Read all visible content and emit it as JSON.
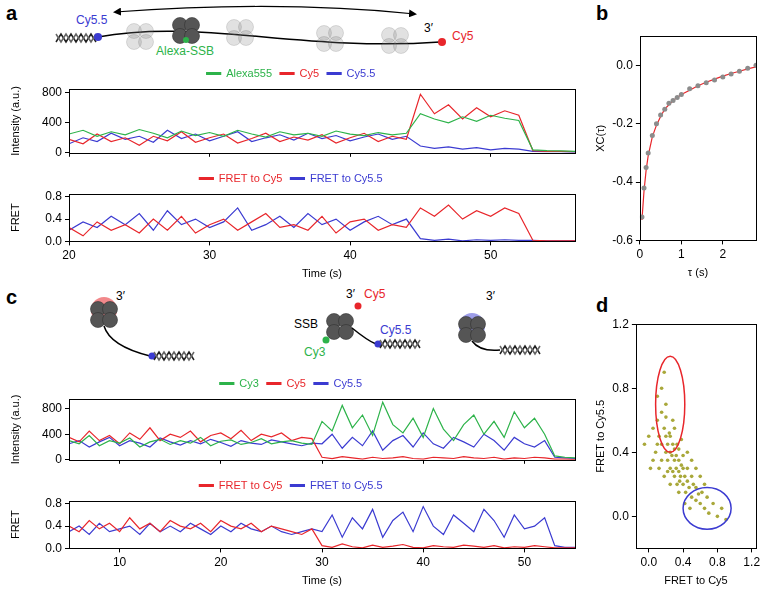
{
  "chart_data": [
    {
      "panel": "a",
      "type": "line",
      "annotations": [
        "Cy5.5",
        "Alexa-SSB",
        "3′",
        "Cy5"
      ],
      "y_label": "Intensity (a.u.)",
      "x": [
        20,
        21,
        22,
        23,
        24,
        25,
        26,
        27,
        28,
        29,
        30,
        31,
        32,
        33,
        34,
        35,
        36,
        37,
        38,
        39,
        40,
        41,
        42,
        43,
        44,
        45,
        46,
        47,
        48,
        49,
        50,
        51,
        52,
        53,
        54,
        55,
        56
      ],
      "xlim": [
        20,
        56
      ],
      "xticks": [
        20,
        30,
        40,
        50
      ],
      "ylim": [
        0,
        850
      ],
      "yticks": [
        0,
        400,
        800
      ],
      "tick_labels": "y",
      "legend": "top",
      "grid": false,
      "series": [
        {
          "name": "Alexa555",
          "color": "#2db34a",
          "values": [
            250,
            300,
            220,
            280,
            240,
            310,
            260,
            200,
            290,
            230,
            270,
            220,
            300,
            250,
            210,
            280,
            240,
            260,
            220,
            290,
            250,
            230,
            270,
            240,
            260,
            520,
            450,
            400,
            480,
            420,
            500,
            460,
            430,
            40,
            30,
            25,
            20
          ]
        },
        {
          "name": "Cy5",
          "color": "#e8262b",
          "values": [
            180,
            120,
            250,
            150,
            200,
            100,
            220,
            160,
            280,
            140,
            200,
            250,
            130,
            190,
            260,
            150,
            210,
            170,
            240,
            130,
            200,
            260,
            150,
            220,
            180,
            780,
            520,
            640,
            450,
            600,
            480,
            560,
            500,
            30,
            20,
            20,
            15
          ]
        },
        {
          "name": "Cy5.5",
          "color": "#3b3bd1",
          "values": [
            120,
            200,
            150,
            260,
            180,
            220,
            140,
            300,
            190,
            250,
            160,
            220,
            280,
            150,
            200,
            240,
            170,
            260,
            190,
            230,
            160,
            210,
            250,
            180,
            220,
            90,
            60,
            80,
            50,
            70,
            40,
            60,
            50,
            20,
            15,
            15,
            10
          ]
        }
      ]
    },
    {
      "panel": "a",
      "type": "line",
      "x_label": "Time (s)",
      "y_label": "FRET",
      "x": [
        20,
        21,
        22,
        23,
        24,
        25,
        26,
        27,
        28,
        29,
        30,
        31,
        32,
        33,
        34,
        35,
        36,
        37,
        38,
        39,
        40,
        41,
        42,
        43,
        44,
        45,
        46,
        47,
        48,
        49,
        50,
        51,
        52,
        53,
        54,
        55,
        56
      ],
      "xlim": [
        20,
        56
      ],
      "xticks": [
        20,
        30,
        40,
        50
      ],
      "ylim": [
        0,
        0.85
      ],
      "yticks": [
        {
          "value": 0,
          "label": "0.0"
        },
        {
          "value": 0.4,
          "label": "0.4"
        },
        {
          "value": 0.8,
          "label": "0.8"
        }
      ],
      "legend": "top",
      "grid": false,
      "series": [
        {
          "name": "FRET to Cy5",
          "color": "#e8262b",
          "values": [
            0.25,
            0.1,
            0.35,
            0.2,
            0.3,
            0.15,
            0.4,
            0.2,
            0.45,
            0.15,
            0.3,
            0.4,
            0.2,
            0.35,
            0.5,
            0.25,
            0.3,
            0.2,
            0.45,
            0.15,
            0.35,
            0.4,
            0.2,
            0.3,
            0.25,
            0.6,
            0.45,
            0.65,
            0.4,
            0.55,
            0.45,
            0.6,
            0.5,
            0.02,
            0.01,
            0.01,
            0.01
          ]
        },
        {
          "name": "FRET to Cy5.5",
          "color": "#3b3bd1",
          "values": [
            0.2,
            0.35,
            0.25,
            0.45,
            0.3,
            0.5,
            0.2,
            0.55,
            0.3,
            0.4,
            0.25,
            0.35,
            0.6,
            0.2,
            0.3,
            0.45,
            0.25,
            0.5,
            0.3,
            0.4,
            0.2,
            0.35,
            0.45,
            0.3,
            0.4,
            0.05,
            0.02,
            0.04,
            0.01,
            0.03,
            0.02,
            0.03,
            0.02,
            0.02,
            0.01,
            0.01,
            0.01
          ]
        }
      ]
    },
    {
      "panel": "b",
      "type": "line",
      "x_label": "τ (s)",
      "y_label": "XC(τ)",
      "x": [
        0.05,
        0.1,
        0.15,
        0.2,
        0.3,
        0.4,
        0.5,
        0.6,
        0.7,
        0.8,
        0.9,
        1.0,
        1.2,
        1.4,
        1.6,
        1.8,
        2.0,
        2.2,
        2.4,
        2.6,
        2.8
      ],
      "xlim": [
        0,
        2.8
      ],
      "xticks": [
        0,
        1,
        2
      ],
      "ylim": [
        -0.6,
        0.1
      ],
      "yticks": [
        {
          "value": -0.6,
          "label": "-0.6"
        },
        {
          "value": -0.4,
          "label": "-0.4"
        },
        {
          "value": -0.2,
          "label": "-0.2"
        },
        {
          "value": 0,
          "label": "0.0"
        }
      ],
      "grid": false,
      "series": [
        {
          "color": "#8c8c8c",
          "marker": "circle",
          "line_style": "none",
          "values": [
            -0.52,
            -0.42,
            -0.35,
            -0.3,
            -0.24,
            -0.2,
            -0.17,
            -0.15,
            -0.13,
            -0.12,
            -0.11,
            -0.1,
            -0.08,
            -0.07,
            -0.06,
            -0.05,
            -0.04,
            -0.03,
            -0.02,
            -0.01,
            0.0
          ]
        },
        {
          "color": "#e8262b",
          "values": [
            -0.53,
            -0.43,
            -0.36,
            -0.31,
            -0.245,
            -0.205,
            -0.175,
            -0.15,
            -0.135,
            -0.12,
            -0.11,
            -0.1,
            -0.085,
            -0.07,
            -0.058,
            -0.047,
            -0.037,
            -0.028,
            -0.02,
            -0.012,
            -0.005
          ]
        }
      ]
    },
    {
      "panel": "c",
      "type": "line",
      "annotations": [
        "3′",
        "3′",
        "Cy5",
        "SSB",
        "Cy5.5",
        "Cy3",
        "3′"
      ],
      "y_label": "Intensity (a.u.)",
      "x": [
        5,
        6,
        7,
        8,
        9,
        10,
        11,
        12,
        13,
        14,
        15,
        16,
        17,
        18,
        19,
        20,
        21,
        22,
        23,
        24,
        25,
        26,
        27,
        28,
        29,
        30,
        31,
        32,
        33,
        34,
        35,
        36,
        37,
        38,
        39,
        40,
        41,
        42,
        43,
        44,
        45,
        46,
        47,
        48,
        49,
        50,
        51,
        52,
        53,
        54,
        55
      ],
      "xlim": [
        5,
        55
      ],
      "xticks": [
        10,
        20,
        30,
        40,
        50
      ],
      "ylim": [
        0,
        950
      ],
      "yticks": [
        0,
        400,
        800
      ],
      "tick_labels": "y",
      "legend": "top",
      "grid": false,
      "series": [
        {
          "name": "Cy3",
          "color": "#2db34a",
          "values": [
            300,
            250,
            380,
            220,
            300,
            260,
            340,
            200,
            280,
            320,
            240,
            300,
            260,
            350,
            220,
            290,
            310,
            240,
            270,
            330,
            250,
            280,
            300,
            260,
            240,
            600,
            450,
            850,
            500,
            700,
            380,
            900,
            550,
            420,
            650,
            350,
            800,
            480,
            300,
            550,
            700,
            400,
            600,
            350,
            750,
            500,
            650,
            400,
            60,
            40,
            30
          ]
        },
        {
          "name": "Cy5",
          "color": "#e8262b",
          "values": [
            350,
            280,
            450,
            300,
            380,
            250,
            420,
            320,
            500,
            300,
            400,
            350,
            450,
            280,
            380,
            420,
            330,
            460,
            300,
            400,
            360,
            420,
            300,
            350,
            330,
            40,
            20,
            50,
            30,
            10,
            40,
            20,
            30,
            50,
            20,
            10,
            40,
            30,
            20,
            50,
            30,
            20,
            40,
            10,
            30,
            20,
            40,
            30,
            10,
            10,
            5
          ]
        },
        {
          "name": "Cy5.5",
          "color": "#3b3bd1",
          "values": [
            250,
            300,
            200,
            280,
            350,
            220,
            300,
            260,
            200,
            340,
            280,
            230,
            300,
            250,
            320,
            270,
            210,
            300,
            260,
            240,
            310,
            280,
            250,
            220,
            260,
            250,
            400,
            180,
            350,
            220,
            450,
            150,
            300,
            380,
            200,
            420,
            250,
            180,
            350,
            280,
            200,
            400,
            300,
            150,
            350,
            250,
            200,
            300,
            40,
            30,
            20
          ]
        }
      ]
    },
    {
      "panel": "c",
      "type": "line",
      "x_label": "Time (s)",
      "y_label": "FRET",
      "x": [
        5,
        6,
        7,
        8,
        9,
        10,
        11,
        12,
        13,
        14,
        15,
        16,
        17,
        18,
        19,
        20,
        21,
        22,
        23,
        24,
        25,
        26,
        27,
        28,
        29,
        30,
        31,
        32,
        33,
        34,
        35,
        36,
        37,
        38,
        39,
        40,
        41,
        42,
        43,
        44,
        45,
        46,
        47,
        48,
        49,
        50,
        51,
        52,
        53,
        54,
        55
      ],
      "xlim": [
        5,
        55
      ],
      "xticks": [
        10,
        20,
        30,
        40,
        50
      ],
      "ylim": [
        0,
        0.85
      ],
      "yticks": [
        {
          "value": 0,
          "label": "0.0"
        },
        {
          "value": 0.4,
          "label": "0.4"
        },
        {
          "value": 0.8,
          "label": "0.8"
        }
      ],
      "legend": "top",
      "grid": false,
      "series": [
        {
          "name": "FRET to Cy5",
          "color": "#e8262b",
          "values": [
            0.4,
            0.3,
            0.5,
            0.35,
            0.45,
            0.3,
            0.55,
            0.35,
            0.45,
            0.3,
            0.5,
            0.4,
            0.35,
            0.45,
            0.3,
            0.5,
            0.4,
            0.35,
            0.45,
            0.3,
            0.4,
            0.35,
            0.3,
            0.25,
            0.35,
            0.05,
            0.02,
            0.08,
            0.03,
            0.01,
            0.06,
            0.02,
            0.04,
            0.07,
            0.02,
            0.01,
            0.05,
            0.03,
            0.02,
            0.06,
            0.04,
            0.02,
            0.05,
            0.01,
            0.03,
            0.02,
            0.05,
            0.03,
            0.01,
            0.01,
            0.01
          ]
        },
        {
          "name": "FRET to Cy5.5",
          "color": "#3b3bd1",
          "values": [
            0.3,
            0.4,
            0.25,
            0.45,
            0.3,
            0.35,
            0.4,
            0.25,
            0.45,
            0.3,
            0.4,
            0.3,
            0.45,
            0.35,
            0.25,
            0.4,
            0.3,
            0.45,
            0.35,
            0.3,
            0.4,
            0.3,
            0.25,
            0.3,
            0.35,
            0.3,
            0.6,
            0.2,
            0.55,
            0.35,
            0.7,
            0.2,
            0.5,
            0.65,
            0.3,
            0.75,
            0.4,
            0.25,
            0.6,
            0.45,
            0.3,
            0.7,
            0.5,
            0.2,
            0.6,
            0.35,
            0.4,
            0.55,
            0.05,
            0.02,
            0.02
          ]
        }
      ]
    },
    {
      "panel": "d",
      "type": "scatter",
      "marker": "circle",
      "x_label": "FRET to Cy5",
      "y_label": "FRET to Cy5.5",
      "xlim": [
        -0.15,
        1.25
      ],
      "xticks": [
        {
          "value": 0,
          "label": "0.0"
        },
        {
          "value": 0.4,
          "label": "0.4"
        },
        {
          "value": 0.8,
          "label": "0.8"
        },
        {
          "value": 1.2,
          "label": "1.2"
        }
      ],
      "ylim": [
        -0.2,
        1.2
      ],
      "yticks": [
        {
          "value": 0,
          "label": "0.0"
        },
        {
          "value": 0.4,
          "label": "0.4"
        },
        {
          "value": 0.8,
          "label": "0.8"
        },
        {
          "value": 1.2,
          "label": "1.2"
        }
      ],
      "grid": false,
      "color": "#a9a83a",
      "x": [
        0.05,
        0.1,
        0.12,
        0.15,
        0.15,
        0.18,
        0.2,
        0.2,
        0.2,
        0.22,
        0.22,
        0.25,
        0.25,
        0.25,
        0.27,
        0.28,
        0.28,
        0.3,
        0.3,
        0.3,
        0.32,
        0.32,
        0.33,
        0.35,
        0.35,
        0.35,
        0.37,
        0.38,
        0.4,
        0.4,
        0.4,
        0.42,
        0.43,
        0.45,
        0.45,
        0.47,
        0.5,
        0.5,
        0.52,
        0.55,
        0.55,
        0.58,
        0.6,
        0.62,
        0.65,
        0.68,
        0.7,
        0.75,
        0.8,
        0.85,
        0.1,
        0.15,
        0.08,
        0.12,
        0.18,
        0.25,
        0.05,
        0.1,
        0.2,
        0.3,
        0.38,
        0.45,
        0.5,
        0.6,
        0.0,
        -0.05,
        0.02,
        0.15,
        0.35,
        0.42,
        0.55,
        0.65,
        0.28,
        0.22,
        0.33,
        0.48,
        0.9,
        0.18,
        0.24,
        0.36
      ],
      "values": [
        0.55,
        0.6,
        0.5,
        0.65,
        0.45,
        0.55,
        0.4,
        0.5,
        0.62,
        0.35,
        0.45,
        0.3,
        0.4,
        0.5,
        0.38,
        0.28,
        0.45,
        0.35,
        0.25,
        0.42,
        0.3,
        0.38,
        0.2,
        0.28,
        0.35,
        0.42,
        0.25,
        0.32,
        0.2,
        0.3,
        0.38,
        0.25,
        0.15,
        0.22,
        0.3,
        0.18,
        0.12,
        0.25,
        0.2,
        0.1,
        0.18,
        0.14,
        0.08,
        0.15,
        0.05,
        0.12,
        0.02,
        0.08,
        0.0,
        0.05,
        0.75,
        0.8,
        0.4,
        0.3,
        0.25,
        0.2,
        0.35,
        0.45,
        0.7,
        0.55,
        0.48,
        0.4,
        0.35,
        0.25,
        0.5,
        0.45,
        0.3,
        0.35,
        0.15,
        0.08,
        0.3,
        0.2,
        0.6,
        0.28,
        0.45,
        0.05,
        -0.02,
        0.9,
        0.52,
        0.22
      ],
      "regions": [
        {
          "color": "#e8262b",
          "center": [
            0.25,
            0.7
          ],
          "radii": [
            0.17,
            0.3
          ]
        },
        {
          "color": "#3b3bd1",
          "center": [
            0.68,
            0.05
          ],
          "radii": [
            0.28,
            0.13
          ]
        }
      ]
    }
  ]
}
